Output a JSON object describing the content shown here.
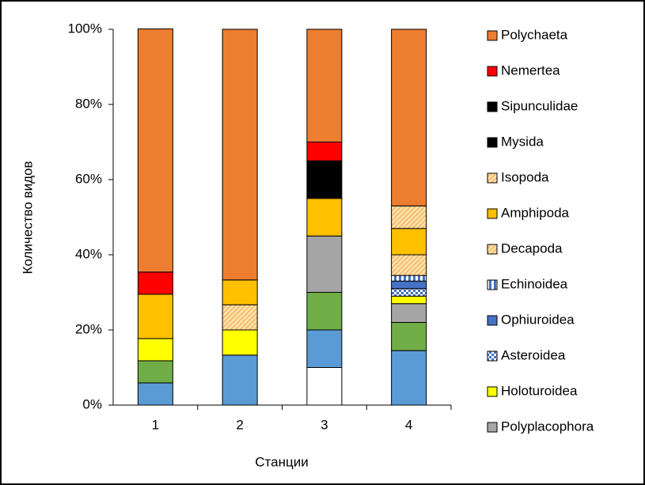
{
  "chart_data": {
    "type": "stacked_bar_percent",
    "x_label": "Станции",
    "y_label": "Количество видов",
    "categories": [
      "1",
      "2",
      "3",
      "4"
    ],
    "ylim": [
      0,
      100
    ],
    "yticks": [
      {
        "value": 0,
        "label": "0%"
      },
      {
        "value": 20,
        "label": "20%"
      },
      {
        "value": 40,
        "label": "40%"
      },
      {
        "value": 60,
        "label": "60%"
      },
      {
        "value": 80,
        "label": "80%"
      },
      {
        "value": 100,
        "label": "100%"
      }
    ],
    "series": [
      {
        "color": "#ffffff",
        "values": [
          null,
          null,
          10,
          null
        ]
      },
      {
        "color": "#5b9bd5",
        "values": [
          5.9,
          13.3,
          10,
          14.5
        ]
      },
      {
        "color": "#70ad47",
        "values": [
          5.9,
          null,
          10,
          7.5
        ]
      },
      {
        "name": "Polyplacophora",
        "color": "#a5a5a5",
        "values": [
          null,
          null,
          15,
          5
        ]
      },
      {
        "name": "Holoturoidea",
        "color": "#ffff00",
        "values": [
          5.9,
          6.7,
          null,
          2
        ]
      },
      {
        "name": "Asteroidea",
        "color": "#4472c4",
        "pattern": "checker",
        "values": [
          null,
          null,
          null,
          2
        ]
      },
      {
        "name": "Ophiuroidea",
        "color": "#4472c4",
        "values": [
          null,
          null,
          null,
          2
        ]
      },
      {
        "name": "Echinoidea",
        "color": "#4472c4",
        "pattern": "vertical",
        "values": [
          null,
          null,
          null,
          1.5
        ]
      },
      {
        "name": "Decapoda",
        "color": "#f4b183",
        "pattern": "diagonal",
        "values": [
          null,
          6.7,
          null,
          5.5
        ]
      },
      {
        "name": "Amphipoda",
        "color": "#ffc000",
        "values": [
          11.8,
          6.6,
          10,
          7
        ]
      },
      {
        "name": "Isopoda",
        "color": "#f4b183",
        "pattern": "diagonal",
        "values": [
          null,
          null,
          null,
          6
        ]
      },
      {
        "name": "Mysida",
        "color": "#000000",
        "values": [
          null,
          null,
          10,
          null
        ]
      },
      {
        "name": "Sipunculidae",
        "color": "#000000",
        "values": [
          null,
          null,
          null,
          null
        ]
      },
      {
        "name": "Nemertea",
        "color": "#ff0000",
        "values": [
          5.9,
          null,
          5,
          null
        ]
      },
      {
        "name": "Polychaeta",
        "color": "#ed7d31",
        "values": [
          64.7,
          66.7,
          30,
          47
        ]
      }
    ]
  }
}
